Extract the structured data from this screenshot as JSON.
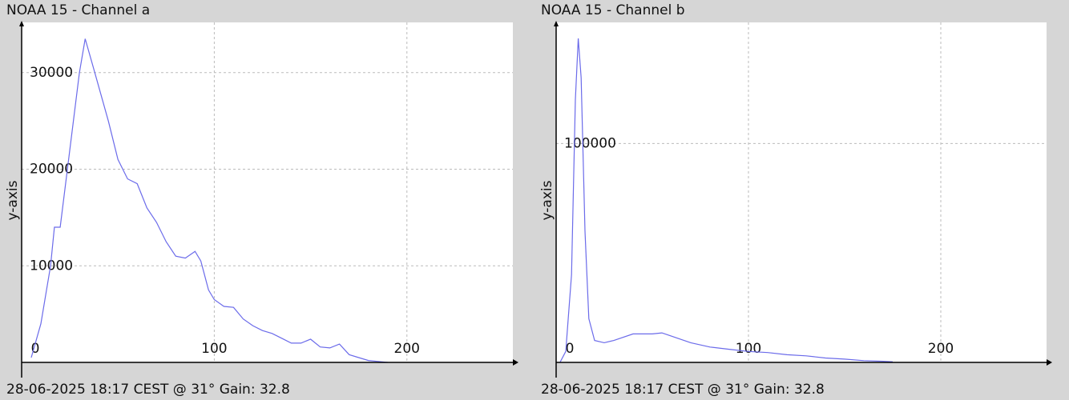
{
  "chart_data": [
    {
      "type": "line",
      "title": "NOAA 15 - Channel a",
      "footer": "28-06-2025 18:17 CEST @ 31° Gain: 32.8",
      "ylabel": "y-axis",
      "x": [
        5,
        10,
        15,
        17,
        20,
        25,
        30,
        33,
        38,
        45,
        50,
        55,
        60,
        65,
        70,
        75,
        80,
        85,
        90,
        93,
        97,
        100,
        105,
        110,
        115,
        120,
        125,
        130,
        135,
        140,
        145,
        150,
        155,
        160,
        165,
        170,
        175,
        180,
        185,
        190
      ],
      "values": [
        500,
        4000,
        10000,
        14000,
        14000,
        22000,
        30000,
        33500,
        30000,
        25000,
        21000,
        19000,
        18500,
        16000,
        14500,
        12500,
        11000,
        10800,
        11500,
        10500,
        7500,
        6500,
        5800,
        5700,
        4500,
        3800,
        3300,
        3000,
        2500,
        2000,
        2000,
        2400,
        1600,
        1500,
        1900,
        800,
        500,
        200,
        100,
        0
      ],
      "color": "#6b6bea",
      "xlim": [
        0,
        255
      ],
      "ylim": [
        0,
        35200
      ],
      "xticks": [
        0,
        100,
        200
      ],
      "yticks": [
        10000,
        20000,
        30000
      ],
      "grid": true
    },
    {
      "type": "line",
      "title": "NOAA 15 - Channel b",
      "footer": "28-06-2025 18:17 CEST @ 31° Gain: 32.8",
      "ylabel": "y-axis",
      "x": [
        2,
        5,
        8,
        10,
        11.5,
        13,
        15,
        17,
        20,
        25,
        30,
        40,
        50,
        55,
        60,
        70,
        80,
        90,
        100,
        110,
        120,
        130,
        140,
        150,
        160,
        170,
        175
      ],
      "values": [
        0,
        5000,
        40000,
        120000,
        148000,
        130000,
        60000,
        20000,
        10000,
        9000,
        10000,
        13000,
        13000,
        13500,
        12000,
        9000,
        7000,
        6000,
        5000,
        4500,
        3500,
        3000,
        2000,
        1500,
        800,
        500,
        300
      ],
      "color": "#6b6bea",
      "xlim": [
        0,
        255
      ],
      "ylim": [
        0,
        155300
      ],
      "xticks": [
        0,
        100,
        200
      ],
      "yticks": [
        100000
      ],
      "grid": true
    }
  ]
}
